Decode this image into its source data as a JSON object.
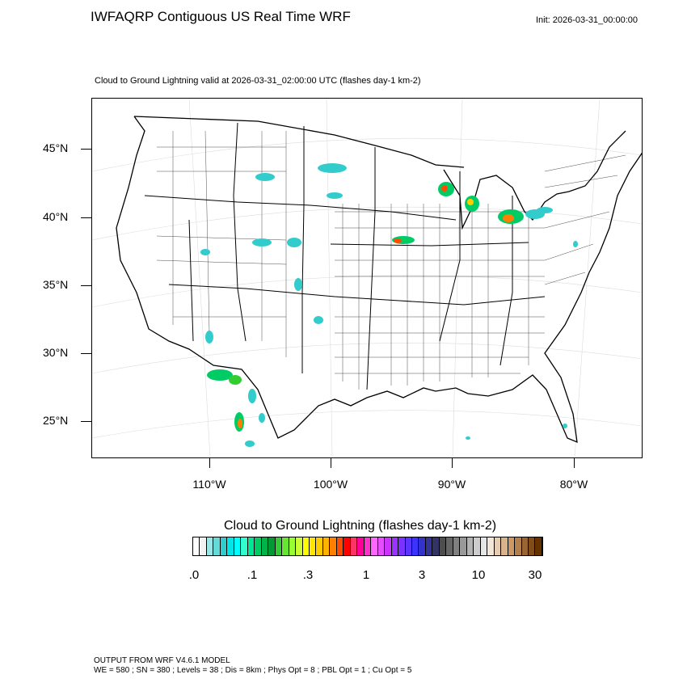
{
  "title": "IWFAQRP Contiguous US Real Time WRF",
  "init": "Init: 2026-03-31_00:00:00",
  "subtitle": "Cloud to Ground Lightning valid at 2026-03-31_02:00:00 UTC   (flashes day-1 km-2)",
  "lat_labels": [
    "45°N",
    "40°N",
    "35°N",
    "30°N",
    "25°N"
  ],
  "lon_labels": [
    "110°W",
    "100°W",
    "90°W",
    "80°W"
  ],
  "colorbar": {
    "title": "Cloud to Ground Lightning  (flashes day-1 km-2)",
    "labels": [
      ".0",
      ".1",
      ".3",
      "1",
      "3",
      "10",
      "30"
    ],
    "colors": [
      "#ffffff",
      "#f2f2f2",
      "#99e6e6",
      "#66d9d9",
      "#33cccc",
      "#00e6e6",
      "#00ffff",
      "#33ffcc",
      "#00e699",
      "#00cc66",
      "#00b347",
      "#009933",
      "#33cc33",
      "#66e633",
      "#99ff33",
      "#ccff33",
      "#ffff00",
      "#ffe600",
      "#ffcc00",
      "#ffb300",
      "#ff8000",
      "#ff4d00",
      "#ff0000",
      "#ff3366",
      "#ff0099",
      "#ff33cc",
      "#ff66ff",
      "#e64dff",
      "#cc33ff",
      "#9933ff",
      "#7a33ff",
      "#5c33ff",
      "#3d33ff",
      "#3333cc",
      "#333399",
      "#333366",
      "#4d4d4d",
      "#666666",
      "#808080",
      "#999999",
      "#b3b3b3",
      "#cccccc",
      "#e6e6e6",
      "#f2e6d9",
      "#e6ccb3",
      "#d9b38c",
      "#cc9966",
      "#b3804d",
      "#996633",
      "#804d1a",
      "#663300"
    ]
  },
  "footer": {
    "line1": "OUTPUT FROM WRF V4.6.1 MODEL",
    "line2": "WE = 580 ; SN = 380 ; Levels = 38 ; Dis = 8km ; Phys Opt = 8 ; PBL Opt = 1 ; Cu Opt = 5"
  }
}
